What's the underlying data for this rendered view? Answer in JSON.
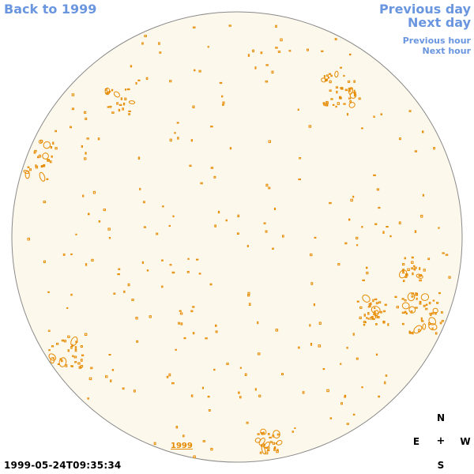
{
  "nav": {
    "back_label": "Back to 1999",
    "prev_day_label": "Previous day",
    "next_day_label": "Next day",
    "prev_hour_label": "Previous hour",
    "next_hour_label": "Next hour"
  },
  "image": {
    "year_link": "1999",
    "timestamp": "1999-05-24T09:35:34"
  },
  "compass": {
    "north": "N",
    "south": "S",
    "east": "E",
    "west": "W",
    "center": "+"
  },
  "colors": {
    "link": "#6a96e0",
    "disk_fill": "#fdf8ec",
    "disk_edge": "#8a8a8a",
    "contour": "#e68a00"
  }
}
